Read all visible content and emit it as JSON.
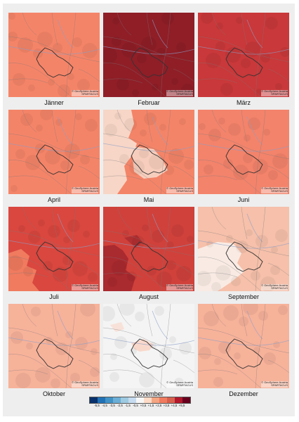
{
  "credit": {
    "line1": "© GeoSphere Austria",
    "line2": "SPARTACUS"
  },
  "months": [
    {
      "label": "Jänner",
      "base": "#f48468",
      "pattern": "uniform"
    },
    {
      "label": "Februar",
      "base": "#8f1e27",
      "pattern": "uniform"
    },
    {
      "label": "März",
      "base": "#c9383a",
      "pattern": "uniform"
    },
    {
      "label": "April",
      "base": "#f48468",
      "pattern": "uniform"
    },
    {
      "label": "Mai",
      "base": "#f48468",
      "pattern": "left-light",
      "light": "#f7d6c7"
    },
    {
      "label": "Juni",
      "base": "#f3836b",
      "pattern": "uniform"
    },
    {
      "label": "Juli",
      "base": "#d9473f",
      "pattern": "left-lower-light",
      "light": "#f07b5f"
    },
    {
      "label": "August",
      "base": "#d0413b",
      "pattern": "left-dark",
      "dark": "#a92a2f"
    },
    {
      "label": "September",
      "base": "#f6c0aa",
      "pattern": "left-lower-pale",
      "light": "#f9ebe4"
    },
    {
      "label": "Oktober",
      "base": "#f7b29a",
      "pattern": "uniform"
    },
    {
      "label": "November",
      "base": "#f4f4f4",
      "pattern": "white-blob",
      "light": "#f9d8cc"
    },
    {
      "label": "Dezember",
      "base": "#f7b29a",
      "pattern": "uniform"
    }
  ],
  "legend": {
    "colors": [
      "#08306b",
      "#2171b5",
      "#4292c6",
      "#6baed6",
      "#9ecae1",
      "#c6dbef",
      "#f7f7f7",
      "#fddbc7",
      "#f4a582",
      "#f07b5f",
      "#d6604d",
      "#b2182b",
      "#67001f"
    ],
    "ticks": [
      "-5,5",
      "-4,5",
      "-3,5",
      "-2,5",
      "-1,5",
      "-0,5",
      "+0,5",
      "+1,5",
      "+2,5",
      "+3,5",
      "+4,5",
      "+5,5"
    ]
  }
}
